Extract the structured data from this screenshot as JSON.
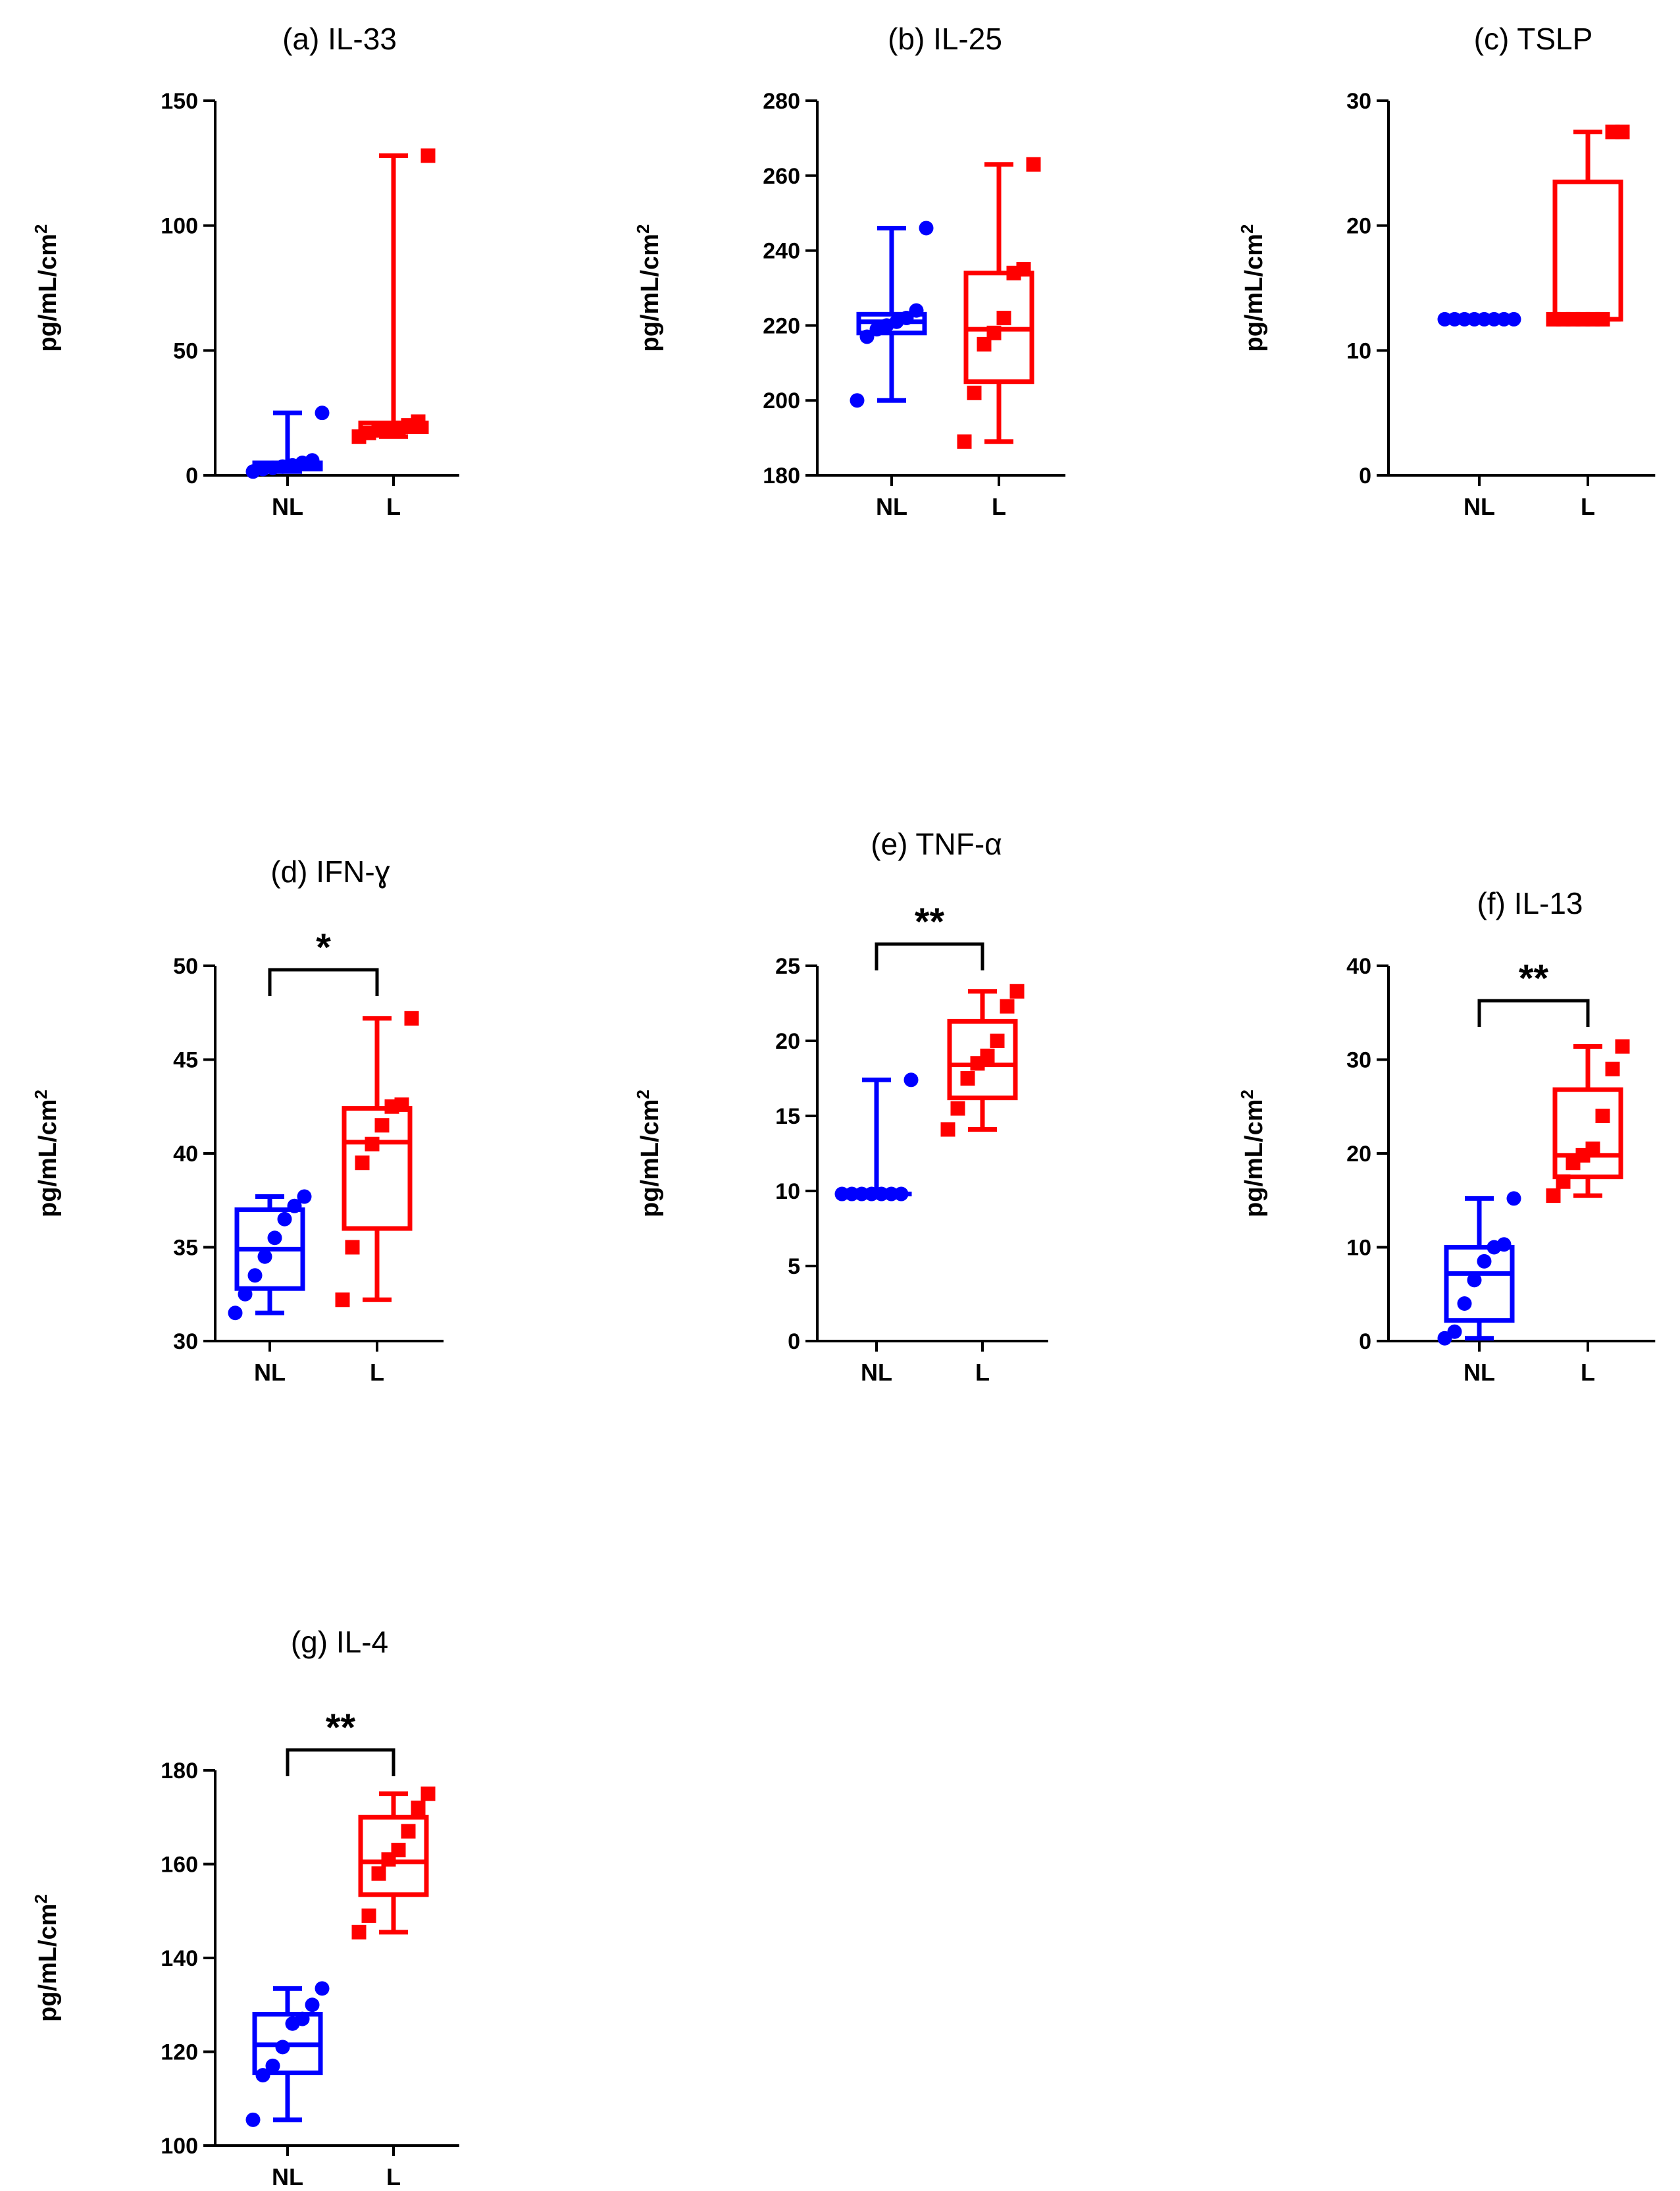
{
  "figure": {
    "ylabel": "pg/mL/cm",
    "ylabel_superscript": "2"
  },
  "chart_data": [
    {
      "type": "box",
      "title": "(a)   IL-33",
      "categories": [
        "NL",
        "L"
      ],
      "ylim": [
        0,
        150
      ],
      "yticks": [
        0,
        50,
        100,
        150
      ],
      "ylabel": "pg/mL/cm²",
      "significance": "",
      "groups": [
        {
          "name": "NL",
          "color": "#0000FF",
          "marker": "circle",
          "min": 1.5,
          "q1": 2.5,
          "median": 3.5,
          "q3": 5,
          "max": 25,
          "points": [
            1.5,
            2.5,
            3,
            3.5,
            4,
            5,
            6,
            25
          ]
        },
        {
          "name": "L",
          "color": "#FF0000",
          "marker": "square",
          "min": 15.5,
          "q1": 17.5,
          "median": 18.5,
          "q3": 21,
          "max": 128,
          "points": [
            15.5,
            17,
            18,
            18.5,
            19,
            20,
            21.5,
            128
          ]
        }
      ]
    },
    {
      "type": "box",
      "title": "(b)   IL-25",
      "categories": [
        "NL",
        "L"
      ],
      "ylim": [
        180,
        280
      ],
      "yticks": [
        180,
        200,
        220,
        240,
        260,
        280
      ],
      "ylabel": "pg/mL/cm²",
      "significance": "",
      "groups": [
        {
          "name": "NL",
          "color": "#0000FF",
          "marker": "circle",
          "min": 200,
          "q1": 218,
          "median": 221,
          "q3": 223,
          "max": 246,
          "points": [
            200,
            217,
            219,
            220,
            221,
            222,
            224,
            246
          ]
        },
        {
          "name": "L",
          "color": "#FF0000",
          "marker": "square",
          "min": 189,
          "q1": 205,
          "median": 219,
          "q3": 234,
          "max": 263,
          "points": [
            189,
            202,
            215,
            218,
            222,
            234,
            235,
            263
          ]
        }
      ]
    },
    {
      "type": "box",
      "title": "(c)   TSLP",
      "categories": [
        "NL",
        "L"
      ],
      "ylim": [
        0,
        30
      ],
      "yticks": [
        0,
        10,
        20,
        30
      ],
      "ylabel": "pg/mL/cm²",
      "significance": "",
      "groups": [
        {
          "name": "NL",
          "color": "#0000FF",
          "marker": "circle",
          "min": 12.5,
          "q1": 12.5,
          "median": 12.5,
          "q3": 12.5,
          "max": 12.5,
          "points": [
            12.5,
            12.5,
            12.5,
            12.5,
            12.5,
            12.5,
            12.5,
            12.5
          ]
        },
        {
          "name": "L",
          "color": "#FF0000",
          "marker": "square",
          "min": 12.5,
          "q1": 12.5,
          "median": 12.5,
          "q3": 23.5,
          "max": 27.5,
          "points": [
            12.5,
            12.5,
            12.5,
            12.5,
            12.5,
            12.5,
            27.5,
            27.5
          ]
        }
      ]
    },
    {
      "type": "box",
      "title": "(d)   IFN-ɣ",
      "categories": [
        "NL",
        "L"
      ],
      "ylim": [
        30,
        50
      ],
      "yticks": [
        30,
        35,
        40,
        45,
        50
      ],
      "ylabel": "pg/mL/cm²",
      "significance": "*",
      "groups": [
        {
          "name": "NL",
          "color": "#0000FF",
          "marker": "circle",
          "min": 31.5,
          "q1": 32.8,
          "median": 34.9,
          "q3": 37,
          "max": 37.7,
          "points": [
            31.5,
            32.5,
            33.5,
            34.5,
            35.5,
            36.5,
            37.2,
            37.7
          ]
        },
        {
          "name": "L",
          "color": "#FF0000",
          "marker": "square",
          "min": 32.2,
          "q1": 36,
          "median": 40.6,
          "q3": 42.4,
          "max": 47.2,
          "points": [
            32.2,
            35,
            39.5,
            40.5,
            41.5,
            42.5,
            42.6,
            47.2
          ]
        }
      ]
    },
    {
      "type": "box",
      "title": "(e)   TNF-α",
      "categories": [
        "NL",
        "L"
      ],
      "ylim": [
        0,
        25
      ],
      "yticks": [
        0,
        5,
        10,
        15,
        20,
        25
      ],
      "ylabel": "pg/mL/cm²",
      "significance": "**",
      "groups": [
        {
          "name": "NL",
          "color": "#0000FF",
          "marker": "circle",
          "min": 9.8,
          "q1": 9.8,
          "median": 9.8,
          "q3": 9.8,
          "max": 17.4,
          "points": [
            9.8,
            9.8,
            9.8,
            9.8,
            9.8,
            9.8,
            9.8,
            17.4
          ]
        },
        {
          "name": "L",
          "color": "#FF0000",
          "marker": "square",
          "min": 14.1,
          "q1": 16.2,
          "median": 18.4,
          "q3": 21.3,
          "max": 23.3,
          "points": [
            14.1,
            15.5,
            17.5,
            18.5,
            19,
            20,
            22.3,
            23.3
          ]
        }
      ]
    },
    {
      "type": "box",
      "title": "(f)   IL-13",
      "categories": [
        "NL",
        "L"
      ],
      "ylim": [
        0,
        40
      ],
      "yticks": [
        0,
        10,
        20,
        30,
        40
      ],
      "ylabel": "pg/mL/cm²",
      "significance": "**",
      "groups": [
        {
          "name": "NL",
          "color": "#0000FF",
          "marker": "circle",
          "min": 0.3,
          "q1": 2.2,
          "median": 7.2,
          "q3": 10,
          "max": 15.2,
          "points": [
            0.3,
            1,
            4,
            6.5,
            8.5,
            10,
            10.3,
            15.2
          ]
        },
        {
          "name": "L",
          "color": "#FF0000",
          "marker": "square",
          "min": 15.5,
          "q1": 17.5,
          "median": 19.8,
          "q3": 26.8,
          "max": 31.4,
          "points": [
            15.5,
            17,
            19,
            19.8,
            20.5,
            24,
            29,
            31.4
          ]
        }
      ]
    },
    {
      "type": "box",
      "title": "(g)   IL-4",
      "categories": [
        "NL",
        "L"
      ],
      "ylim": [
        100,
        180
      ],
      "yticks": [
        100,
        120,
        140,
        160,
        180
      ],
      "ylabel": "pg/mL/cm²",
      "significance": "**",
      "groups": [
        {
          "name": "NL",
          "color": "#0000FF",
          "marker": "circle",
          "min": 105.5,
          "q1": 115.5,
          "median": 121.5,
          "q3": 128,
          "max": 133.5,
          "points": [
            105.5,
            115,
            117,
            121,
            126,
            127,
            130,
            133.5
          ]
        },
        {
          "name": "L",
          "color": "#FF0000",
          "marker": "square",
          "min": 145.5,
          "q1": 153.5,
          "median": 160.5,
          "q3": 170,
          "max": 175,
          "points": [
            145.5,
            149,
            158,
            161,
            163,
            167,
            172,
            175
          ]
        }
      ]
    }
  ]
}
